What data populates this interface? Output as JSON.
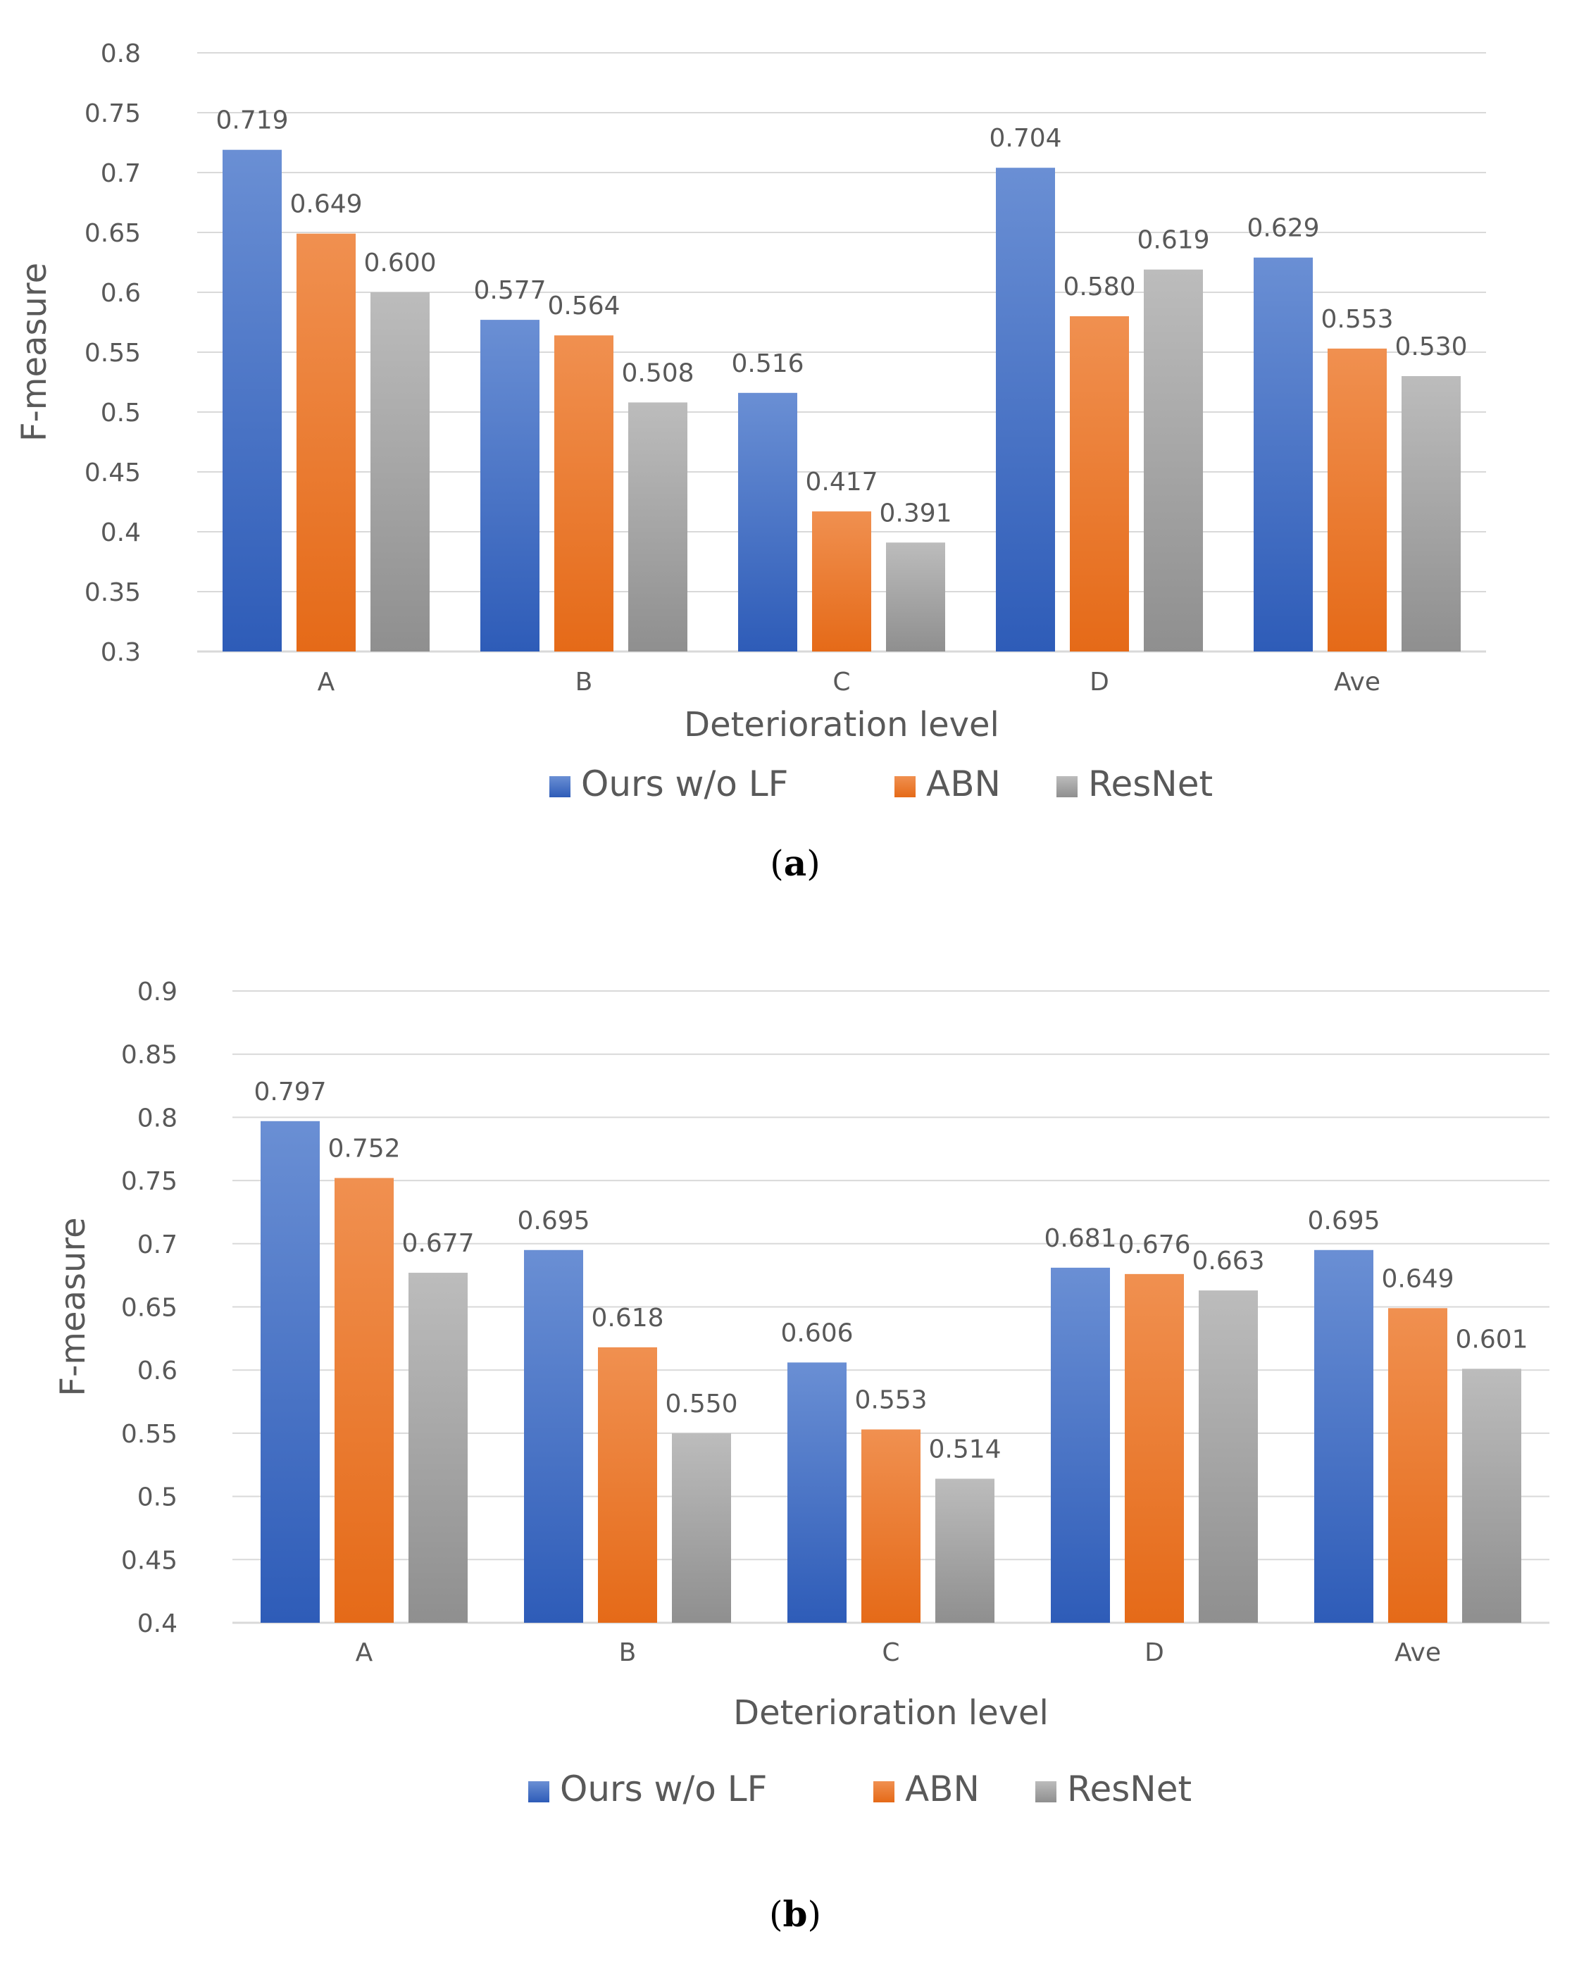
{
  "chart_data": [
    {
      "type": "bar",
      "caption": {
        "open": "(",
        "label": "a",
        "close": ")"
      },
      "categories": [
        "A",
        "B",
        "C",
        "D",
        "Ave"
      ],
      "series": [
        {
          "name": "Ours w/o LF",
          "values": [
            0.719,
            0.577,
            0.516,
            0.704,
            0.629
          ],
          "labels": [
            "0.719",
            "0.577",
            "0.516",
            "0.704",
            "0.629"
          ],
          "color_top": "#6a8fd4",
          "color_bottom": "#2e5cb8"
        },
        {
          "name": "ABN",
          "values": [
            0.649,
            0.564,
            0.417,
            0.58,
            0.553
          ],
          "labels": [
            "0.649",
            "0.564",
            "0.417",
            "0.580",
            "0.553"
          ],
          "color_top": "#f09050",
          "color_bottom": "#e56a18"
        },
        {
          "name": "ResNet",
          "values": [
            0.6,
            0.508,
            0.391,
            0.619,
            0.53
          ],
          "labels": [
            "0.600",
            "0.508",
            "0.391",
            "0.619",
            "0.530"
          ],
          "color_top": "#bcbcbc",
          "color_bottom": "#8f8f8f"
        }
      ],
      "yticks": [
        "0.3",
        "0.35",
        "0.4",
        "0.45",
        "0.5",
        "0.55",
        "0.6",
        "0.65",
        "0.7",
        "0.75",
        "0.8"
      ],
      "ylim": [
        0.3,
        0.8
      ],
      "xlabel": "Deterioration level",
      "ylabel": "F-measure",
      "legend": "bottom",
      "grid": true
    },
    {
      "type": "bar",
      "caption": {
        "open": "(",
        "label": "b",
        "close": ")"
      },
      "categories": [
        "A",
        "B",
        "C",
        "D",
        "Ave"
      ],
      "series": [
        {
          "name": "Ours w/o LF",
          "values": [
            0.797,
            0.695,
            0.606,
            0.681,
            0.695
          ],
          "labels": [
            "0.797",
            "0.695",
            "0.606",
            "0.681",
            "0.695"
          ],
          "color_top": "#6a8fd4",
          "color_bottom": "#2e5cb8"
        },
        {
          "name": "ABN",
          "values": [
            0.752,
            0.618,
            0.553,
            0.676,
            0.649
          ],
          "labels": [
            "0.752",
            "0.618",
            "0.553",
            "0.676",
            "0.649"
          ],
          "color_top": "#f09050",
          "color_bottom": "#e56a18"
        },
        {
          "name": "ResNet",
          "values": [
            0.677,
            0.55,
            0.514,
            0.663,
            0.601
          ],
          "labels": [
            "0.677",
            "0.550",
            "0.514",
            "0.663",
            "0.601"
          ],
          "color_top": "#bcbcbc",
          "color_bottom": "#8f8f8f"
        }
      ],
      "yticks": [
        "0.4",
        "0.45",
        "0.5",
        "0.55",
        "0.6",
        "0.65",
        "0.7",
        "0.75",
        "0.8",
        "0.85",
        "0.9"
      ],
      "ylim": [
        0.4,
        0.9
      ],
      "xlabel": "Deterioration level",
      "ylabel": "F-measure",
      "legend": "bottom",
      "grid": true
    }
  ]
}
